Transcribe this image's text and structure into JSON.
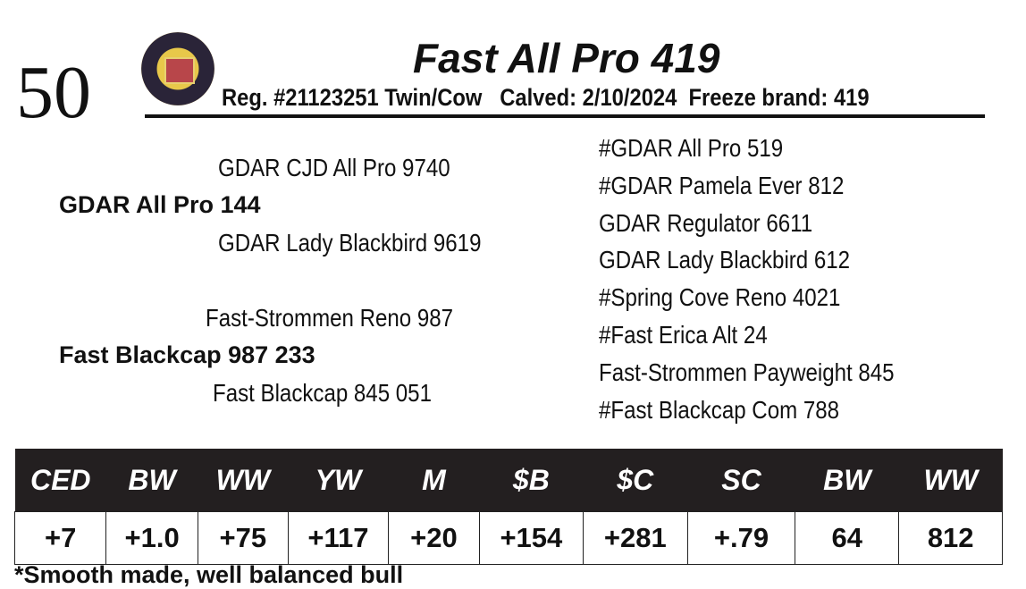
{
  "lot_number": "50",
  "title": "Fast All Pro 419",
  "registration": "Reg. #21123251 Twin/Cow   Calved: 2/10/2024  Freeze brand: 419",
  "pedigree": {
    "sire": "GDAR All Pro 144",
    "sire_sire": "GDAR CJD All Pro 9740",
    "sire_dam": "GDAR Lady Blackbird 9619",
    "dam": "Fast Blackcap 987 233",
    "dam_sire": "Fast-Strommen Reno 987",
    "dam_dam": "Fast Blackcap 845 051",
    "great_grandparents": [
      "#GDAR All Pro 519",
      "#GDAR Pamela Ever 812",
      "GDAR Regulator 6611",
      "GDAR Lady Blackbird 612",
      "#Spring Cove Reno 4021",
      "#Fast Erica Alt 24",
      "Fast-Strommen Payweight 845",
      "#Fast Blackcap Com 788"
    ]
  },
  "epd": {
    "headers": [
      "CED",
      "BW",
      "WW",
      "YW",
      "M",
      "$B",
      "$C",
      "SC",
      "BW",
      "WW"
    ],
    "values": [
      "+7",
      "+1.0",
      "+75",
      "+117",
      "+20",
      "+154",
      "+281",
      "+.79",
      "64",
      "812"
    ]
  },
  "note": "*Smooth made, well balanced bull"
}
